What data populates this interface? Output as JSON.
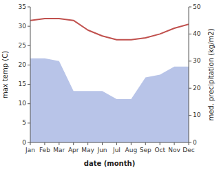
{
  "chart_data": {
    "type": "line",
    "xlabel": "date (month)",
    "ylabel": "max temp (C)",
    "y2label": "med. precipitation (kg/m2)",
    "categories": [
      "Jan",
      "Feb",
      "Mar",
      "Apr",
      "May",
      "Jun",
      "Jul",
      "Aug",
      "Sep",
      "Oct",
      "Nov",
      "Dec"
    ],
    "series": [
      {
        "type": "area",
        "axis": "y2",
        "color": "#b8c4e8",
        "values": [
          31,
          31,
          30,
          19,
          19,
          19,
          16,
          16,
          24,
          25,
          28,
          28
        ]
      },
      {
        "type": "line",
        "color": "#c0504d",
        "values": [
          31.5,
          32.0,
          32.0,
          31.5,
          29.0,
          27.5,
          26.5,
          26.5,
          27.0,
          28.0,
          29.5,
          30.5
        ]
      }
    ],
    "ylim": [
      0,
      35
    ],
    "yticks": [
      0,
      5,
      10,
      15,
      20,
      25,
      30,
      35
    ],
    "y2lim": [
      0,
      50
    ],
    "y2ticks": [
      0,
      10,
      20,
      30,
      40,
      50
    ],
    "grid": false
  }
}
